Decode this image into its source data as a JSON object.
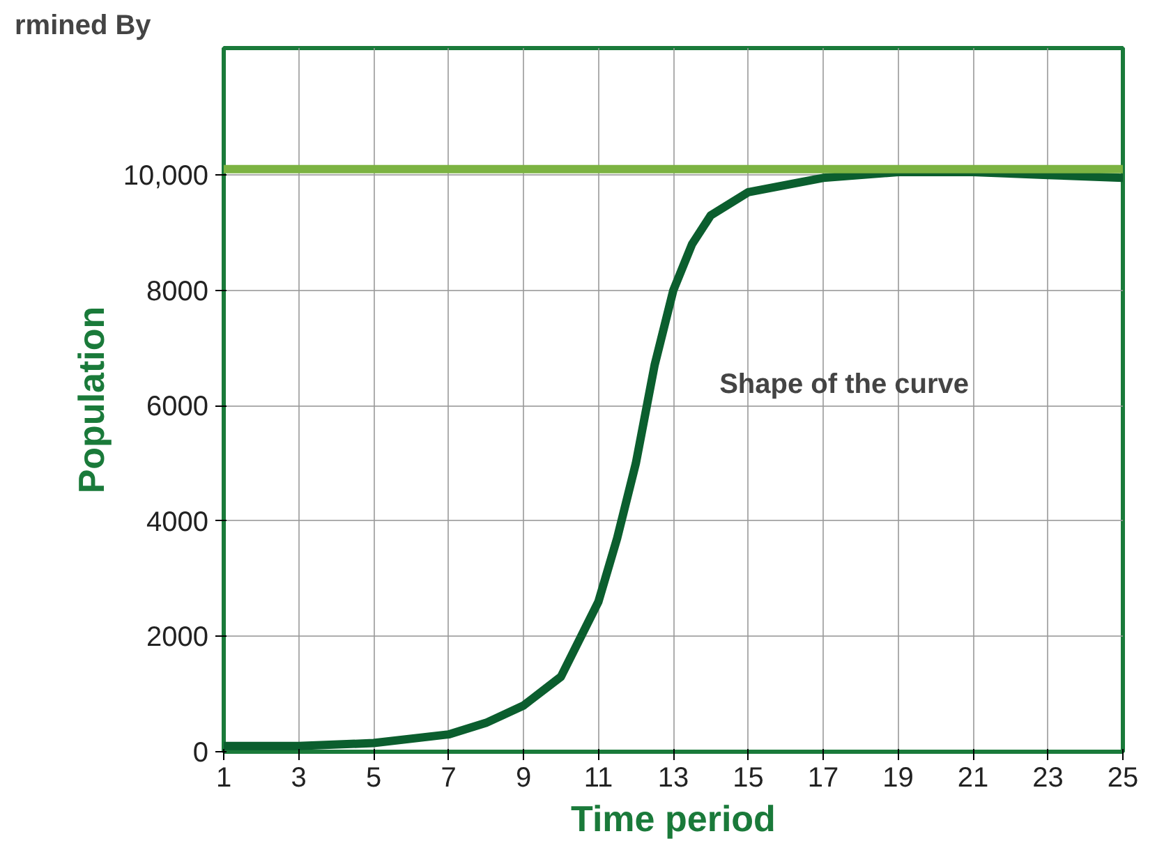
{
  "chart_data": {
    "type": "line",
    "xlabel": "Time period",
    "ylabel": "Population",
    "x": [
      1,
      3,
      5,
      7,
      8,
      9,
      10,
      11,
      11.5,
      12,
      12.5,
      13,
      13.5,
      14,
      15,
      17,
      19,
      21,
      23,
      25
    ],
    "series": [
      {
        "color": "#0b5e2e",
        "values": [
          100,
          100,
          150,
          300,
          500,
          800,
          1300,
          2600,
          3700,
          5000,
          6700,
          8000,
          8800,
          9300,
          9700,
          9950,
          10050,
          10050,
          10000,
          9950
        ]
      }
    ],
    "xlim": [
      1,
      25
    ],
    "ylim": [
      0,
      12200
    ],
    "xticks": [
      1,
      3,
      5,
      7,
      9,
      11,
      13,
      15,
      17,
      19,
      21,
      23,
      25
    ],
    "yticks": [
      0,
      2000,
      4000,
      6000,
      8000,
      {
        "value": 10000,
        "label": "10,000"
      }
    ],
    "ref_lines": [
      {
        "axis": "y",
        "value": 10100,
        "color": "#7cb342"
      }
    ],
    "grid": true,
    "marker": "none",
    "line_style": "solid",
    "annotations": [
      "rmined By",
      "Shape of the curve"
    ]
  }
}
